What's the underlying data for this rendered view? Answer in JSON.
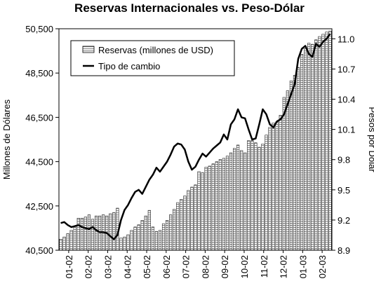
{
  "chart_data": {
    "type": "bar",
    "title": "Reservas Internacionales vs. Peso-Dólar",
    "ylabel": "Millones de Dólares",
    "y2label": "Pesos por Dólar",
    "ylim": [
      40500,
      50500
    ],
    "y2lim": [
      8.9,
      11.1
    ],
    "yticks": [
      "40,500",
      "42,500",
      "44,500",
      "46,500",
      "48,500",
      "50,500"
    ],
    "y2ticks": [
      "8.9",
      "9.2",
      "9.5",
      "9.8",
      "10.1",
      "10.4",
      "10.7",
      "11.0"
    ],
    "xtick_labels": [
      "01-02",
      "02-02",
      "03-02",
      "04-02",
      "05-02",
      "06-02",
      "07-02",
      "08-02",
      "09-02",
      "10-02",
      "11-02",
      "12-02",
      "01-03",
      "02-03"
    ],
    "grid": false,
    "legend_position": "top-left",
    "series": [
      {
        "name": "Reservas (millones de USD)",
        "kind": "bar",
        "color": "#d8d8d8",
        "values": [
          41000,
          41100,
          41250,
          41400,
          41600,
          41950,
          41950,
          42000,
          42100,
          41900,
          42050,
          42050,
          42100,
          42050,
          42150,
          42200,
          42400,
          41050,
          41100,
          41200,
          41400,
          41550,
          41650,
          41850,
          42050,
          42300,
          41550,
          41350,
          41400,
          41700,
          41850,
          42100,
          42350,
          42650,
          42800,
          42950,
          43200,
          43350,
          43450,
          44050,
          44000,
          44250,
          44300,
          44400,
          44500,
          44600,
          44650,
          44750,
          44900,
          45100,
          45250,
          45000,
          44900,
          45450,
          45450,
          45350,
          45150,
          45300,
          45700,
          46050,
          46250,
          46300,
          46600,
          47400,
          47700,
          48150,
          48400,
          48750,
          49350,
          49700,
          49850,
          49800,
          50000,
          50150,
          50250,
          50350,
          50400
        ]
      },
      {
        "name": "Tipo de cambio",
        "kind": "line",
        "color": "#000000",
        "values": [
          9.17,
          9.18,
          9.15,
          9.13,
          9.14,
          9.15,
          9.13,
          9.12,
          9.11,
          9.13,
          9.1,
          9.08,
          9.08,
          9.07,
          9.04,
          9.01,
          9.05,
          9.2,
          9.3,
          9.35,
          9.42,
          9.48,
          9.5,
          9.46,
          9.53,
          9.6,
          9.65,
          9.72,
          9.68,
          9.73,
          9.78,
          9.85,
          9.93,
          9.96,
          9.95,
          9.9,
          9.78,
          9.7,
          9.73,
          9.8,
          9.86,
          9.83,
          9.87,
          9.91,
          9.94,
          9.97,
          10.05,
          10.0,
          10.15,
          10.2,
          10.3,
          10.22,
          10.21,
          10.1,
          10.0,
          10.01,
          10.15,
          10.3,
          10.25,
          10.15,
          10.12,
          10.18,
          10.2,
          10.25,
          10.35,
          10.45,
          10.55,
          10.8,
          10.9,
          10.93,
          10.85,
          10.82,
          10.95,
          10.92,
          10.97,
          11.0,
          11.05
        ]
      }
    ]
  }
}
